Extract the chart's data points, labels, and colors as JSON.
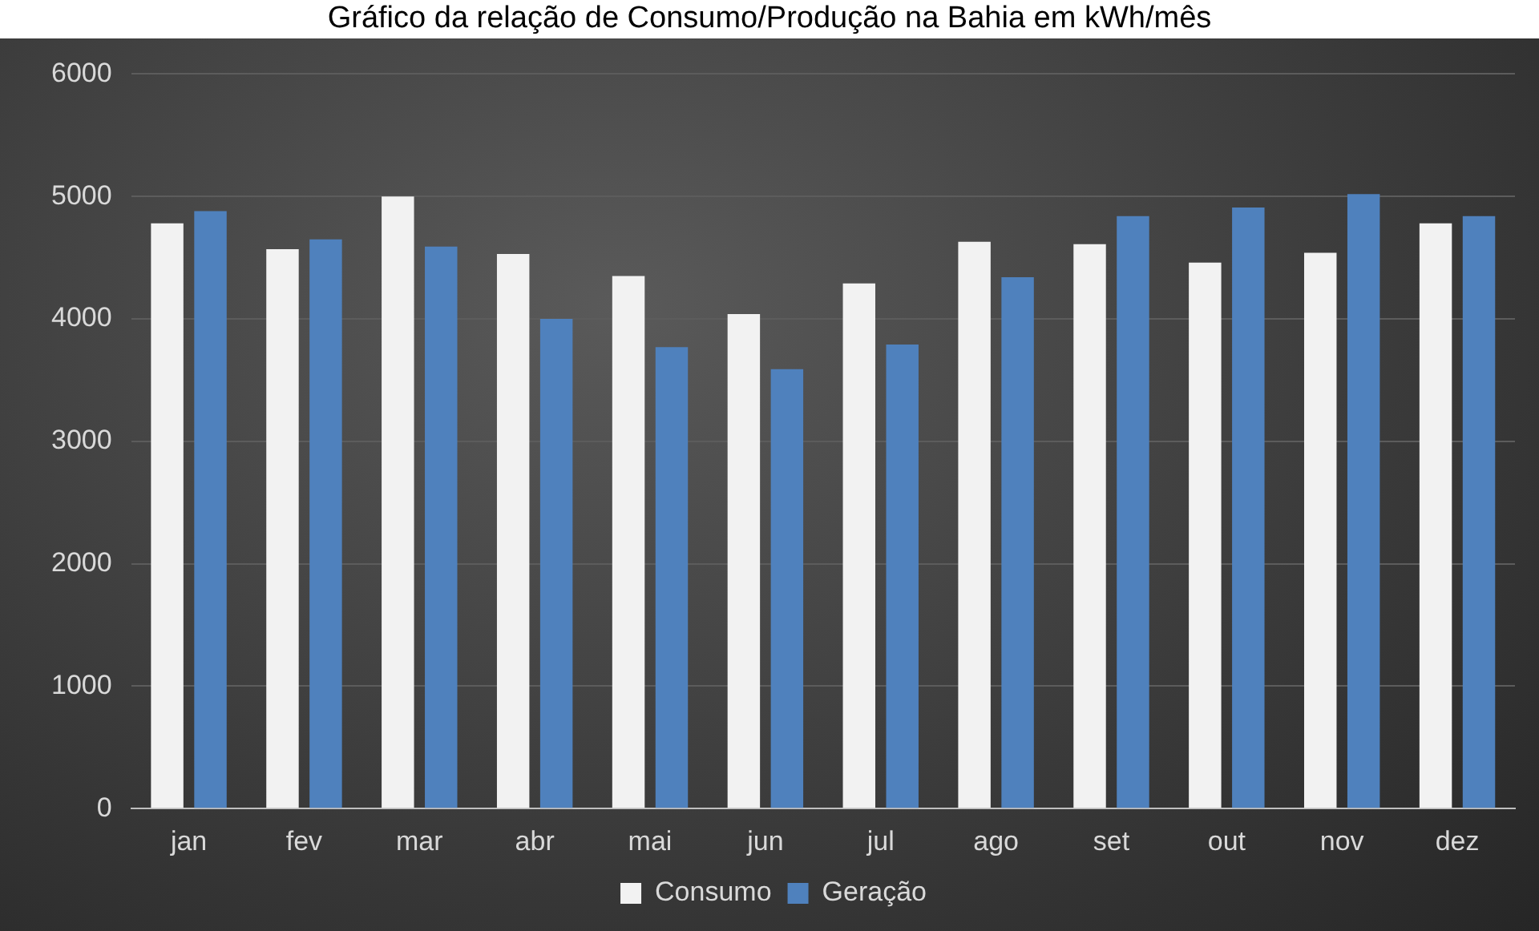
{
  "chart_data": {
    "type": "bar",
    "title": "Gráfico da relação de Consumo/Produção na Bahia em kWh/mês",
    "categories": [
      "jan",
      "fev",
      "mar",
      "abr",
      "mai",
      "jun",
      "jul",
      "ago",
      "set",
      "out",
      "nov",
      "dez"
    ],
    "series": [
      {
        "name": "Consumo",
        "color": "#f2f2f2",
        "values": [
          4780,
          4570,
          5000,
          4530,
          4350,
          4040,
          4290,
          4630,
          4610,
          4460,
          4540,
          4780
        ]
      },
      {
        "name": "Geração",
        "color": "#4f81bd",
        "values": [
          4880,
          4650,
          4590,
          4000,
          3770,
          3590,
          3790,
          4340,
          4840,
          4910,
          5020,
          4840
        ]
      }
    ],
    "ylim": [
      0,
      6000
    ],
    "yticks": [
      0,
      1000,
      2000,
      3000,
      4000,
      5000,
      6000
    ],
    "grid": "y",
    "legend": "bottom"
  }
}
